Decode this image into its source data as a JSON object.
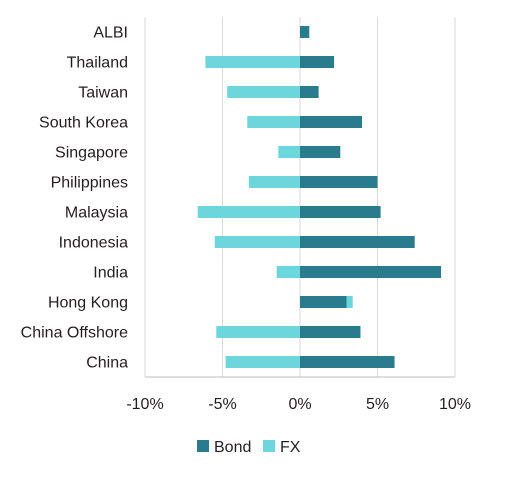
{
  "chart_data": {
    "type": "bar",
    "orientation": "horizontal",
    "stacked": true,
    "categories": [
      "ALBI",
      "Thailand",
      "Taiwan",
      "South Korea",
      "Singapore",
      "Philippines",
      "Malaysia",
      "Indonesia",
      "India",
      "Hong Kong",
      "China Offshore",
      "China"
    ],
    "series": [
      {
        "name": "Bond",
        "color": "#2a7b8c",
        "values": [
          0.6,
          2.2,
          1.2,
          4.0,
          2.6,
          5.0,
          5.2,
          7.4,
          9.1,
          3.0,
          3.9,
          6.1
        ]
      },
      {
        "name": "FX",
        "color": "#6dd6dc",
        "values": [
          0.0,
          -6.1,
          -4.7,
          -3.4,
          -1.4,
          -3.3,
          -6.6,
          -5.5,
          -1.5,
          0.4,
          -5.4,
          -4.8
        ]
      }
    ],
    "x_ticks": [
      "-10%",
      "-5%",
      "0%",
      "5%",
      "10%"
    ],
    "xlim": [
      -10,
      10
    ],
    "gridlines": "vertical",
    "legend": "bottom"
  }
}
